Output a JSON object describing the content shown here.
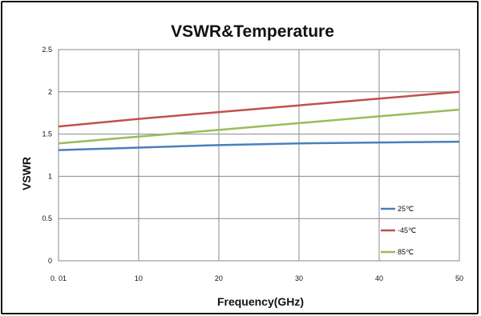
{
  "chart_data": {
    "type": "line",
    "title": "VSWR&Temperature",
    "xlabel": "Frequency(GHz)",
    "ylabel": "VSWR",
    "xlim": [
      0.01,
      50
    ],
    "ylim": [
      0,
      2.5
    ],
    "x_ticks": [
      0.01,
      10,
      20,
      30,
      40,
      50
    ],
    "x_tick_labels": [
      "0. 01",
      "10",
      "20",
      "30",
      "40",
      "50"
    ],
    "y_ticks": [
      0,
      0.5,
      1,
      1.5,
      2,
      2.5
    ],
    "y_tick_labels": [
      "0",
      "0.5",
      "1",
      "1.5",
      "2",
      "2.5"
    ],
    "grid": true,
    "legend_position": "bottom-right",
    "series": [
      {
        "name": "25℃",
        "color": "#4a7ebb",
        "x": [
          0.01,
          10,
          20,
          30,
          40,
          50
        ],
        "values": [
          1.31,
          1.34,
          1.37,
          1.39,
          1.4,
          1.41
        ]
      },
      {
        "name": "-45℃",
        "color": "#c0504d",
        "x": [
          0.01,
          10,
          20,
          30,
          40,
          50
        ],
        "values": [
          1.59,
          1.68,
          1.76,
          1.84,
          1.92,
          2.0
        ]
      },
      {
        "name": "85℃",
        "color": "#9bbb59",
        "x": [
          0.01,
          10,
          20,
          30,
          40,
          50
        ],
        "values": [
          1.39,
          1.47,
          1.55,
          1.63,
          1.71,
          1.79
        ]
      }
    ]
  }
}
